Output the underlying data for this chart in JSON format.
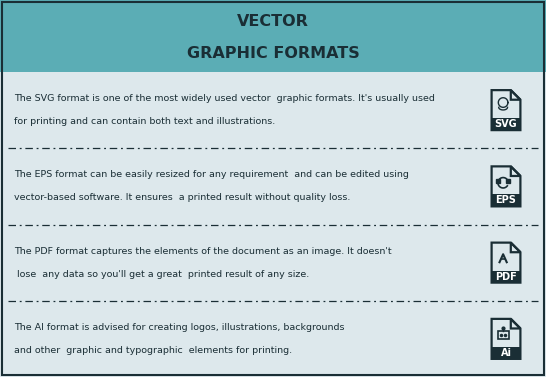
{
  "title_line1": "VECTOR",
  "title_line2": "GRAPHIC FORMATS",
  "header_bg": "#5badb5",
  "body_bg": "#dde8ec",
  "title_color": "#1a2e35",
  "text_color": "#1a2e35",
  "border_color": "#1a2e35",
  "rows": [
    {
      "format": "SVG",
      "text_line1": "The SVG format is one of the most widely used vector  graphic formats. It's usually used",
      "text_line2": "for printing and can contain both text and illustrations."
    },
    {
      "format": "EPS",
      "text_line1": "The EPS format can be easily resized for any requirement  and can be edited using",
      "text_line2": "vector-based software. It ensures  a printed result without quality loss."
    },
    {
      "format": "PDF",
      "text_line1": "The PDF format captures the elements of the document as an image. It doesn't",
      "text_line2": " lose  any data so you'll get a great  printed result of any size."
    },
    {
      "format": "Ai",
      "text_line1": "The AI format is advised for creating logos, illustrations, backgrounds",
      "text_line2": "and other  graphic and typographic  elements for printing."
    }
  ],
  "divider_color": "#1a2e35",
  "icon_color": "#1a2e35",
  "icon_bg": "#dde8ec"
}
